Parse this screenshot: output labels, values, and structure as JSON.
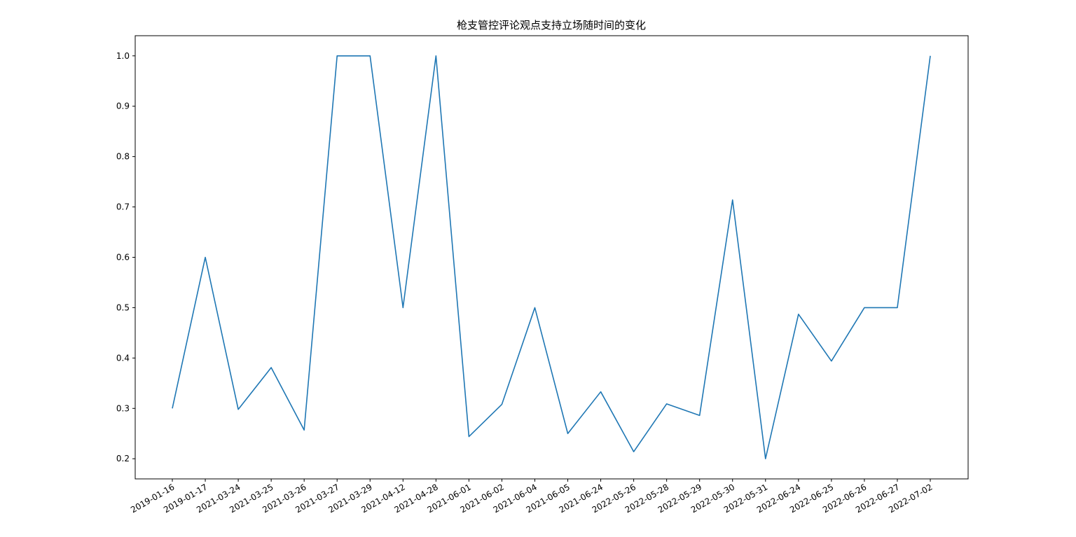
{
  "chart_data": {
    "type": "line",
    "title": "枪支管控评论观点支持立场随时间的变化",
    "xlabel": "",
    "ylabel": "",
    "x": [
      "2019-01-16",
      "2019-01-17",
      "2021-03-24",
      "2021-03-25",
      "2021-03-26",
      "2021-03-27",
      "2021-03-29",
      "2021-04-12",
      "2021-04-28",
      "2021-06-01",
      "2021-06-02",
      "2021-06-04",
      "2021-06-05",
      "2021-06-24",
      "2022-05-26",
      "2022-05-28",
      "2022-05-29",
      "2022-05-30",
      "2022-05-31",
      "2022-06-24",
      "2022-06-25",
      "2022-06-26",
      "2022-06-27",
      "2022-07-02"
    ],
    "series": [
      {
        "values": [
          0.3,
          0.6,
          0.298,
          0.381,
          0.257,
          1.0,
          1.0,
          0.5,
          1.0,
          0.244,
          0.308,
          0.5,
          0.25,
          0.333,
          0.214,
          0.309,
          0.286,
          0.714,
          0.2,
          0.487,
          0.394,
          0.5,
          0.5,
          1.0
        ],
        "color": "#1f77b4"
      }
    ],
    "yticks": [
      "0.2",
      "0.3",
      "0.4",
      "0.5",
      "0.6",
      "0.7",
      "0.8",
      "0.9",
      "1.0"
    ],
    "ylim": [
      0.16,
      1.04
    ],
    "grid": false,
    "legend": "none"
  }
}
